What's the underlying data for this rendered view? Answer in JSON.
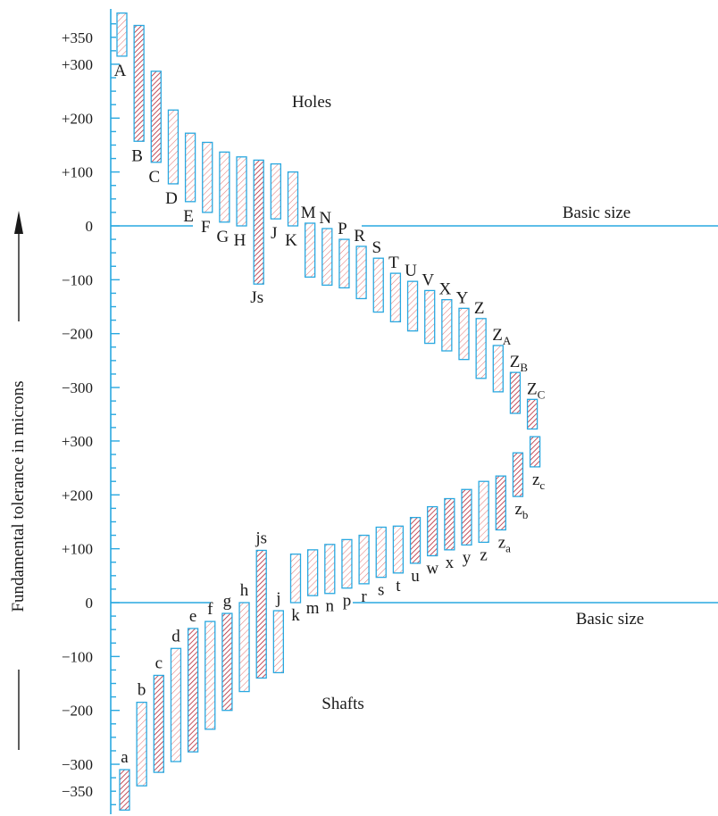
{
  "axis_title": "Fundamental tolerance in microns",
  "holes_label": "Holes",
  "shafts_label": "Shafts",
  "basic_size_label": "Basic size",
  "colors": {
    "axis": "#29a8e0",
    "hatch_light": "#e07a7a",
    "hatch_dark": "#b0182a"
  },
  "tick_labels_top": [
    "+350",
    "+300",
    "+200",
    "+100",
    "0",
    "−100",
    "−200",
    "−300"
  ],
  "tick_labels_bottom": [
    "+300",
    "+200",
    "+100",
    "0",
    "−100",
    "−200",
    "−300",
    "−350"
  ],
  "chart_data": {
    "type": "diagram",
    "holes": [
      {
        "label": "A",
        "upper": 395,
        "lower": 315,
        "dark": false
      },
      {
        "label": "B",
        "upper": 372,
        "lower": 157,
        "dark": true
      },
      {
        "label": "C",
        "upper": 287,
        "lower": 118,
        "dark": true
      },
      {
        "label": "D",
        "upper": 215,
        "lower": 78,
        "dark": false
      },
      {
        "label": "E",
        "upper": 172,
        "lower": 45,
        "dark": false
      },
      {
        "label": "F",
        "upper": 155,
        "lower": 25,
        "dark": false
      },
      {
        "label": "G",
        "upper": 137,
        "lower": 7,
        "dark": false
      },
      {
        "label": "H",
        "upper": 128,
        "lower": 0,
        "dark": false
      },
      {
        "label": "Js",
        "upper": 122,
        "lower": -108,
        "dark": true
      },
      {
        "label": "J",
        "upper": 115,
        "lower": 13,
        "dark": false
      },
      {
        "label": "K",
        "upper": 100,
        "lower": 0,
        "dark": false
      },
      {
        "label": "M",
        "upper": 5,
        "lower": -95,
        "dark": false
      },
      {
        "label": "N",
        "upper": -5,
        "lower": -110,
        "dark": false
      },
      {
        "label": "P",
        "upper": -25,
        "lower": -115,
        "dark": false
      },
      {
        "label": "R",
        "upper": -38,
        "lower": -135,
        "dark": false
      },
      {
        "label": "S",
        "upper": -60,
        "lower": -160,
        "dark": false
      },
      {
        "label": "T",
        "upper": -88,
        "lower": -178,
        "dark": false
      },
      {
        "label": "U",
        "upper": -103,
        "lower": -195,
        "dark": false
      },
      {
        "label": "V",
        "upper": -120,
        "lower": -218,
        "dark": false
      },
      {
        "label": "X",
        "upper": -137,
        "lower": -232,
        "dark": false
      },
      {
        "label": "Y",
        "upper": -153,
        "lower": -248,
        "dark": false
      },
      {
        "label": "Z",
        "upper": -172,
        "lower": -283,
        "dark": false
      },
      {
        "label": "ZA",
        "upper": -222,
        "lower": -308,
        "dark": false
      },
      {
        "label": "ZB",
        "upper": -272,
        "lower": -348,
        "dark": true
      },
      {
        "label": "ZC",
        "upper": -322,
        "lower": -377,
        "dark": true
      }
    ],
    "shafts": [
      {
        "label": "a",
        "upper": -310,
        "lower": -385,
        "dark": true
      },
      {
        "label": "b",
        "upper": -185,
        "lower": -340,
        "dark": false
      },
      {
        "label": "c",
        "upper": -135,
        "lower": -315,
        "dark": true
      },
      {
        "label": "d",
        "upper": -85,
        "lower": -295,
        "dark": false
      },
      {
        "label": "e",
        "upper": -48,
        "lower": -277,
        "dark": true
      },
      {
        "label": "f",
        "upper": -35,
        "lower": -235,
        "dark": false
      },
      {
        "label": "g",
        "upper": -20,
        "lower": -200,
        "dark": true
      },
      {
        "label": "h",
        "upper": 0,
        "lower": -165,
        "dark": false
      },
      {
        "label": "js",
        "upper": 97,
        "lower": -140,
        "dark": true
      },
      {
        "label": "j",
        "upper": -15,
        "lower": -130,
        "dark": false
      },
      {
        "label": "k",
        "upper": 90,
        "lower": 0,
        "dark": false
      },
      {
        "label": "m",
        "upper": 98,
        "lower": 13,
        "dark": false
      },
      {
        "label": "n",
        "upper": 108,
        "lower": 17,
        "dark": false
      },
      {
        "label": "p",
        "upper": 117,
        "lower": 27,
        "dark": false
      },
      {
        "label": "r",
        "upper": 125,
        "lower": 35,
        "dark": false
      },
      {
        "label": "s",
        "upper": 140,
        "lower": 47,
        "dark": false
      },
      {
        "label": "t",
        "upper": 142,
        "lower": 55,
        "dark": false
      },
      {
        "label": "u",
        "upper": 158,
        "lower": 73,
        "dark": true
      },
      {
        "label": "w",
        "upper": 178,
        "lower": 87,
        "dark": true
      },
      {
        "label": "x",
        "upper": 193,
        "lower": 98,
        "dark": true
      },
      {
        "label": "y",
        "upper": 210,
        "lower": 107,
        "dark": true
      },
      {
        "label": "z",
        "upper": 225,
        "lower": 112,
        "dark": false
      },
      {
        "label": "za",
        "upper": 235,
        "lower": 135,
        "dark": true
      },
      {
        "label": "zb",
        "upper": 278,
        "lower": 197,
        "dark": true
      },
      {
        "label": "zc",
        "upper": 308,
        "lower": 252,
        "dark": true
      }
    ]
  }
}
